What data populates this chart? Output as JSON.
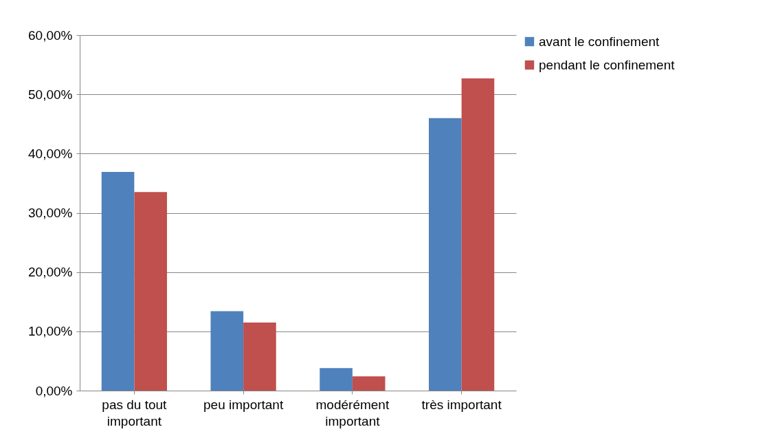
{
  "chart_data": {
    "type": "bar",
    "categories": [
      "pas du tout important",
      "peu important",
      "modérément important",
      "très important"
    ],
    "series": [
      {
        "name": "avant le confinement",
        "color": "#4f81bd",
        "values": [
          36.9,
          13.4,
          3.8,
          46.0
        ]
      },
      {
        "name": "pendant le confinement",
        "color": "#c0504d",
        "values": [
          33.5,
          11.5,
          2.4,
          52.7
        ]
      }
    ],
    "ylim": [
      0,
      60
    ],
    "yticks": [
      {
        "value": 0,
        "label": "0,00%"
      },
      {
        "value": 10,
        "label": "10,00%"
      },
      {
        "value": 20,
        "label": "20,00%"
      },
      {
        "value": 30,
        "label": "30,00%"
      },
      {
        "value": 40,
        "label": "40,00%"
      },
      {
        "value": 50,
        "label": "50,00%"
      },
      {
        "value": 60,
        "label": "60,00%"
      }
    ],
    "grid": "y",
    "legend": "right"
  }
}
